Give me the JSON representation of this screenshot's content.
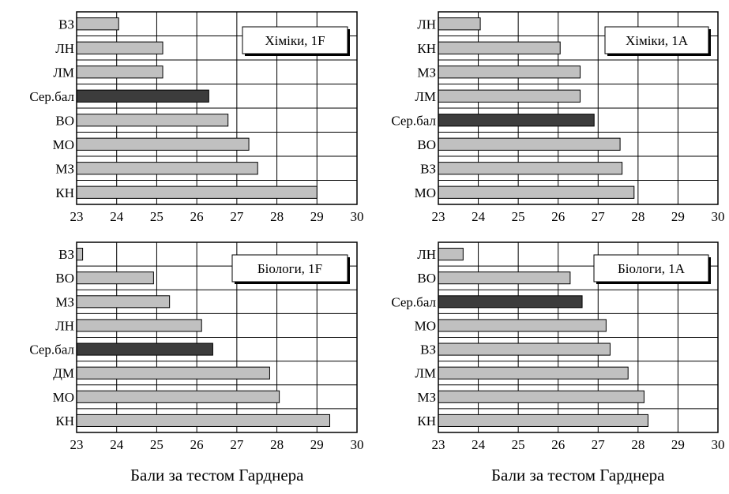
{
  "colors": {
    "bar": "#c0c0c0",
    "avg_bar": "#3c3c3c",
    "grid": "#000000",
    "background": "#ffffff"
  },
  "chart_data": [
    {
      "type": "bar",
      "orientation": "horizontal",
      "title": "Хіміки, 1F",
      "categories": [
        "ВЗ",
        "ЛН",
        "ЛМ",
        "Сер.бал",
        "ВО",
        "МО",
        "МЗ",
        "КН"
      ],
      "values": [
        24.05,
        25.15,
        25.15,
        26.3,
        26.78,
        27.3,
        27.52,
        29.0
      ],
      "highlight": "Сер.бал",
      "xlim": [
        23,
        30
      ],
      "xticks": [
        23,
        24,
        25,
        26,
        27,
        28,
        29,
        30
      ],
      "xlabel": "",
      "grid": true
    },
    {
      "type": "bar",
      "orientation": "horizontal",
      "title": "Хіміки, 1А",
      "categories": [
        "ЛН",
        "КН",
        "МЗ",
        "ЛМ",
        "Сер.бал",
        "ВО",
        "ВЗ",
        "МО"
      ],
      "values": [
        24.05,
        26.05,
        26.55,
        26.55,
        26.9,
        27.55,
        27.6,
        27.9
      ],
      "highlight": "Сер.бал",
      "xlim": [
        23,
        30
      ],
      "xticks": [
        23,
        24,
        25,
        26,
        27,
        28,
        29,
        30
      ],
      "xlabel": "",
      "grid": true
    },
    {
      "type": "bar",
      "orientation": "horizontal",
      "title": "Біологи, 1F",
      "categories": [
        "ВЗ",
        "ВО",
        "МЗ",
        "ЛН",
        "Сер.бал",
        "ДМ",
        "МО",
        "КН"
      ],
      "values": [
        23.15,
        24.92,
        25.32,
        26.12,
        26.4,
        27.82,
        28.06,
        29.32
      ],
      "highlight": "Сер.бал",
      "xlim": [
        23,
        30
      ],
      "xticks": [
        23,
        24,
        25,
        26,
        27,
        28,
        29,
        30
      ],
      "xlabel": "Бали за тестом Гарднера",
      "grid": true
    },
    {
      "type": "bar",
      "orientation": "horizontal",
      "title": "Біологи, 1А",
      "categories": [
        "ЛН",
        "ВО",
        "Сер.бал",
        "МО",
        "ВЗ",
        "ЛМ",
        "МЗ",
        "КН"
      ],
      "values": [
        23.62,
        26.3,
        26.6,
        27.2,
        27.3,
        27.75,
        28.15,
        28.25
      ],
      "highlight": "Сер.бал",
      "xlim": [
        23,
        30
      ],
      "xticks": [
        23,
        24,
        25,
        26,
        27,
        28,
        29,
        30
      ],
      "xlabel": "Бали за тестом Гарднера",
      "grid": true
    }
  ]
}
